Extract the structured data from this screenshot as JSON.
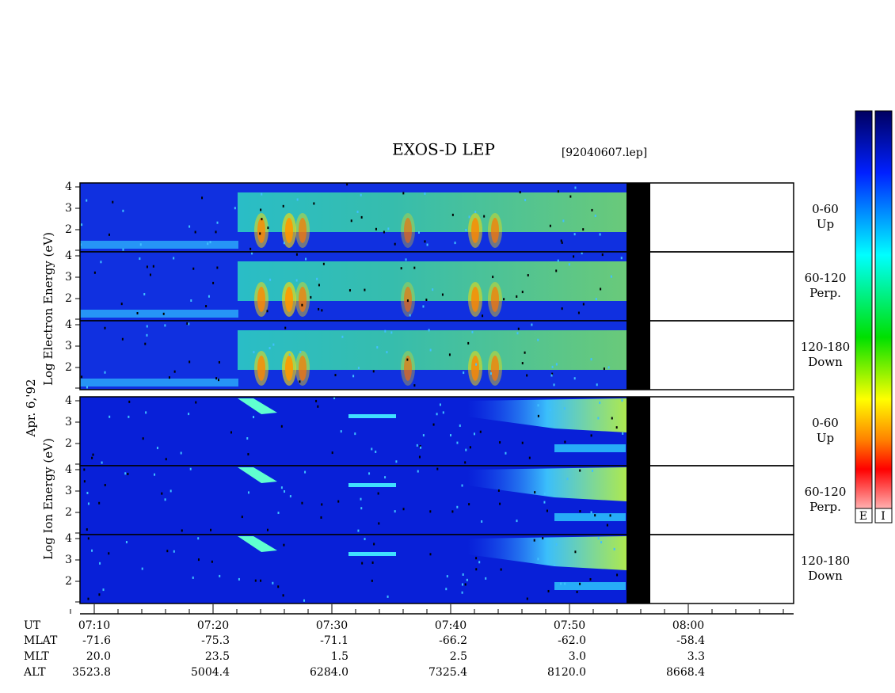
{
  "header": {
    "title": "EXOS-D LEP",
    "file": "[92040607.lep]"
  },
  "side_labels": {
    "electron": "Log  Electron  Energy  (eV)",
    "ion": "Log  Ion  Energy  (eV)",
    "date": "Apr. 6,'92"
  },
  "panels": [
    {
      "pitch": "0-60",
      "direction": "Up",
      "yticks": [
        "4",
        "3",
        "2"
      ]
    },
    {
      "pitch": "60-120",
      "direction": "Perp.",
      "yticks": [
        "4",
        "3",
        "2"
      ]
    },
    {
      "pitch": "120-180",
      "direction": "Down",
      "yticks": [
        "4",
        "3",
        "2"
      ]
    },
    {
      "pitch": "0-60",
      "direction": "Up",
      "yticks": [
        "4",
        "3",
        "2"
      ]
    },
    {
      "pitch": "60-120",
      "direction": "Perp.",
      "yticks": [
        "4",
        "3",
        "2"
      ]
    },
    {
      "pitch": "120-180",
      "direction": "Down",
      "yticks": [
        "4",
        "3",
        "2"
      ]
    }
  ],
  "x_axis": {
    "rows": [
      "UT",
      "MLAT",
      "MLT",
      "ALT"
    ],
    "columns": [
      [
        "07:10",
        "-71.6",
        "20.0",
        "3523.8"
      ],
      [
        "07:20",
        "-75.3",
        "23.5",
        "5004.4"
      ],
      [
        "07:30",
        "-71.1",
        "1.5",
        "6284.0"
      ],
      [
        "07:40",
        "-66.2",
        "2.5",
        "7325.4"
      ],
      [
        "07:50",
        "-62.0",
        "3.0",
        "8120.0"
      ],
      [
        "08:00",
        "-58.4",
        "3.3",
        "8668.4"
      ]
    ]
  },
  "colorbar": {
    "labels": [
      "E",
      "I"
    ]
  }
}
